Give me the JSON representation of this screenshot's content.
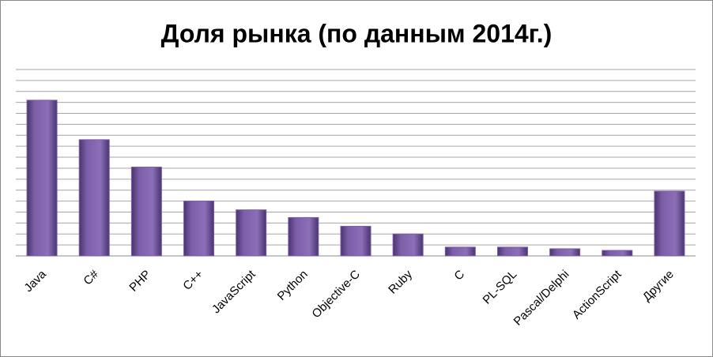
{
  "chart_data": {
    "type": "bar",
    "title": "Доля рынка (по данным 2014г.)",
    "categories": [
      "Java",
      "C#",
      "PHP",
      "C++",
      "JavaScript",
      "Python",
      "Objective-C",
      "Ruby",
      "C",
      "PL-SQL",
      "Pascal/Delphi",
      "ActionScript",
      "Другие"
    ],
    "values": [
      14.2,
      10.6,
      8.1,
      5.0,
      4.2,
      3.5,
      2.7,
      2.0,
      0.8,
      0.8,
      0.65,
      0.5,
      5.9
    ],
    "color": "#7b5ea7",
    "ylim": [
      0,
      17
    ],
    "yticks": [
      0,
      1,
      2,
      3,
      4,
      5,
      6,
      7,
      8,
      9,
      10,
      11,
      12,
      13,
      14,
      15,
      16,
      17
    ],
    "grid": true
  }
}
